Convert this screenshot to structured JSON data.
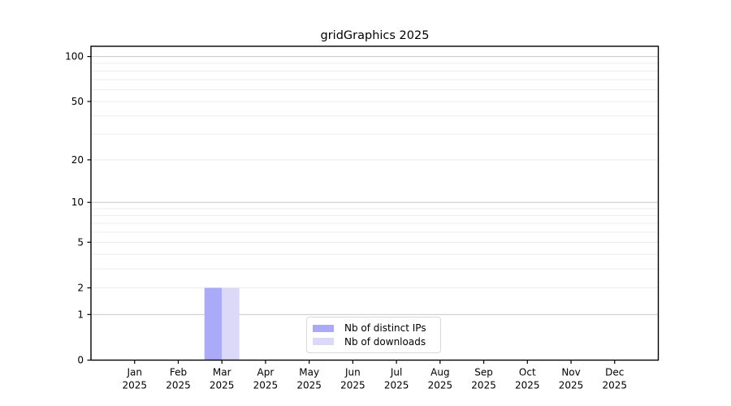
{
  "title": "gridGraphics 2025",
  "chart_data": {
    "type": "bar",
    "title": "gridGraphics 2025",
    "year": "2025",
    "months": [
      "Jan",
      "Feb",
      "Mar",
      "Apr",
      "May",
      "Jun",
      "Jul",
      "Aug",
      "Sep",
      "Oct",
      "Nov",
      "Dec"
    ],
    "series": [
      {
        "name": "Nb of distinct IPs",
        "color": "#aaaaf8",
        "values": [
          0,
          0,
          2,
          0,
          0,
          0,
          0,
          0,
          0,
          0,
          0,
          0
        ]
      },
      {
        "name": "Nb of downloads",
        "color": "#dadaf8",
        "values": [
          0,
          0,
          2,
          0,
          0,
          0,
          0,
          0,
          0,
          0,
          0,
          0
        ]
      }
    ],
    "yscale": "log1p",
    "ylim": [
      0,
      117
    ],
    "yticks": [
      0,
      1,
      2,
      5,
      10,
      20,
      50,
      100
    ],
    "minor_gridlines": [
      2,
      3,
      4,
      5,
      6,
      7,
      8,
      9,
      20,
      30,
      40,
      50,
      60,
      70,
      80,
      90
    ],
    "major_gridlines": [
      1,
      10,
      100
    ],
    "xlabel": "",
    "ylabel": "",
    "grid": true,
    "legend_position": "lower-center-inside",
    "colors": {
      "grid_minor": "#ededed",
      "grid_major": "#c8c8c8",
      "axis": "#000000",
      "tick_text": "#000000",
      "legend_border": "#d8d8d8",
      "background": "#ffffff"
    }
  }
}
